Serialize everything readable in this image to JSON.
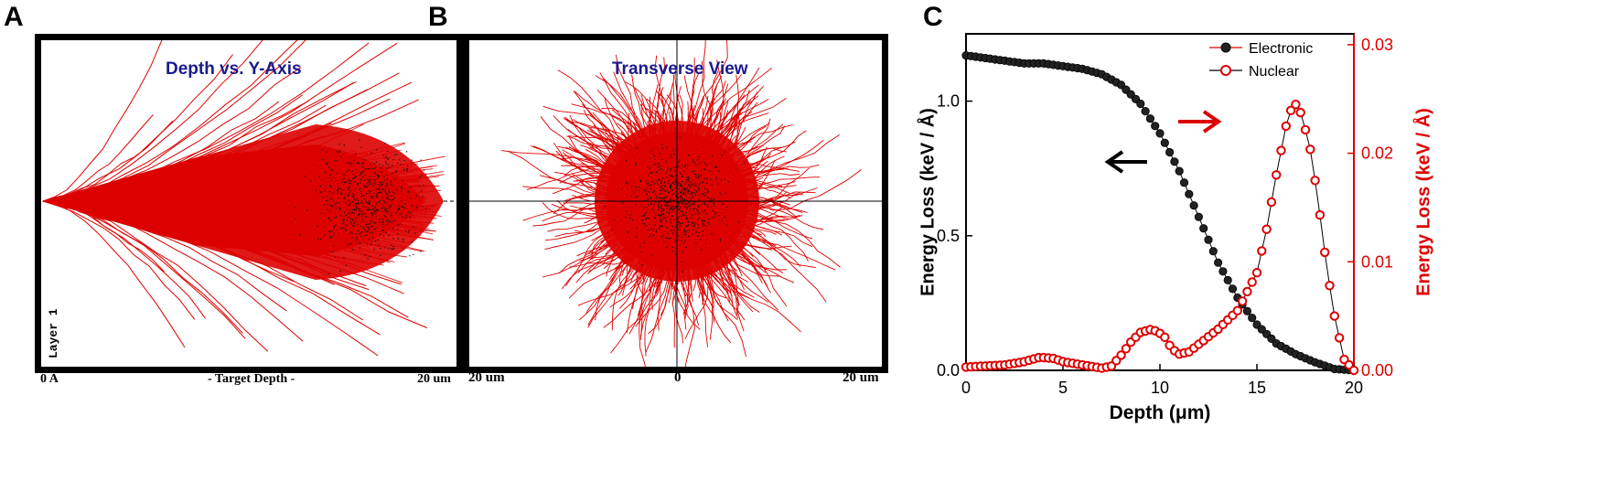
{
  "panels": {
    "a": {
      "letter": "A",
      "title": "Depth vs. Y-Axis",
      "layer_label": "Layer 1",
      "x_start": "0 A",
      "x_mid": "- Target Depth -",
      "x_end": "20 um"
    },
    "b": {
      "letter": "B",
      "title": "Transverse View",
      "x_left": "20 um",
      "x_mid": "0",
      "x_right": "20 um"
    },
    "c": {
      "letter": "C"
    }
  },
  "colors": {
    "track": "#dd0000",
    "electronic": "#000000",
    "nuclear": "#dd0000",
    "title_blue": "#1a1a8c"
  },
  "chart_data": {
    "type": "line",
    "xlabel": "Depth (μm)",
    "ylabel_left": "Energy Loss (keV / Å)",
    "ylabel_right": "Energy Loss (keV / Å)",
    "xlim": [
      0,
      20
    ],
    "ylim_left": [
      0,
      1.25
    ],
    "ylim_right": [
      0,
      0.031
    ],
    "xticks": [
      "0",
      "5",
      "10",
      "15",
      "20"
    ],
    "yticks_left": [
      "0.0",
      "0.5",
      "1.0"
    ],
    "yticks_right": [
      "0.00",
      "0.01",
      "0.02",
      "0.03"
    ],
    "legend_position": "top-right",
    "series": [
      {
        "name": "Electronic",
        "axis": "left",
        "color": "#000000",
        "x": [
          0,
          1,
          2,
          3,
          4,
          5,
          6,
          7,
          8,
          9,
          10,
          11,
          12,
          13,
          14,
          15,
          16,
          17,
          18,
          19,
          20
        ],
        "values": [
          1.17,
          1.16,
          1.15,
          1.14,
          1.14,
          1.13,
          1.12,
          1.1,
          1.06,
          0.99,
          0.88,
          0.74,
          0.57,
          0.4,
          0.27,
          0.17,
          0.1,
          0.06,
          0.03,
          0.005,
          0.0
        ]
      },
      {
        "name": "Nuclear",
        "axis": "right",
        "color": "#dd0000",
        "x": [
          0,
          1,
          2,
          3,
          3.8,
          4.5,
          5,
          6,
          7,
          7.5,
          8,
          8.5,
          9,
          9.6,
          10.2,
          10.6,
          11,
          11.5,
          12,
          13,
          14,
          15,
          15.5,
          16,
          16.5,
          16.9,
          17.3,
          17.8,
          18.2,
          18.6,
          19,
          19.5,
          20
        ],
        "values": [
          0.0003,
          0.0004,
          0.0005,
          0.0008,
          0.0012,
          0.0011,
          0.0008,
          0.0005,
          0.0002,
          0.0004,
          0.0014,
          0.0026,
          0.0035,
          0.0038,
          0.0032,
          0.002,
          0.0015,
          0.0017,
          0.0024,
          0.0038,
          0.0055,
          0.009,
          0.013,
          0.018,
          0.0225,
          0.0248,
          0.0236,
          0.02,
          0.015,
          0.0095,
          0.005,
          0.001,
          0.0
        ]
      }
    ]
  }
}
